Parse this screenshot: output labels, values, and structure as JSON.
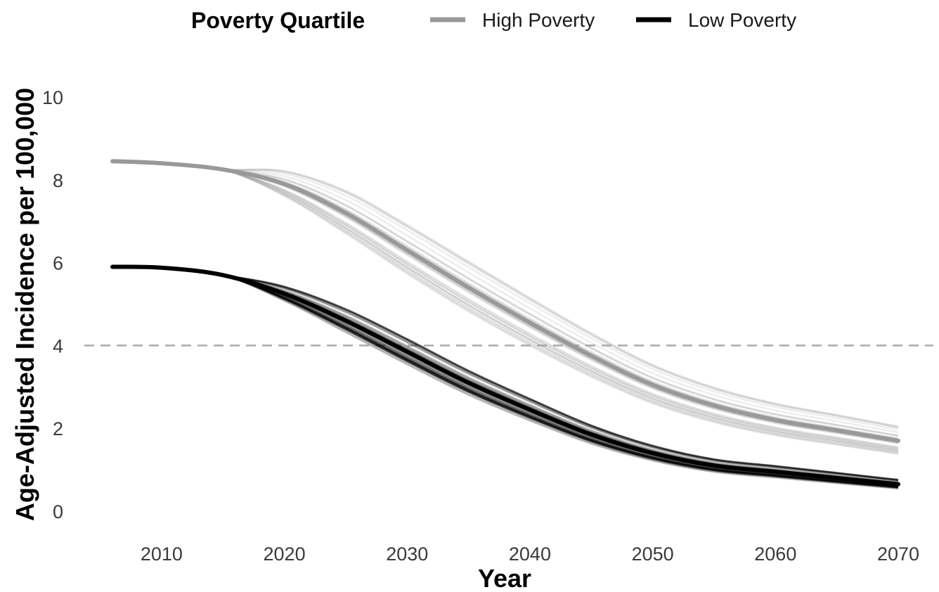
{
  "chart_data": {
    "type": "line",
    "xlabel": "Year",
    "ylabel": "Age-Adjusted Incidence per 100,000",
    "xlim": [
      2006,
      2070
    ],
    "ylim": [
      0,
      10
    ],
    "x_ticks": [
      2010,
      2020,
      2030,
      2040,
      2050,
      2060,
      2070
    ],
    "y_ticks": [
      0,
      2,
      4,
      6,
      8,
      10
    ],
    "grid": false,
    "legend": {
      "title": "Poverty Quartile",
      "position": "top",
      "entries": [
        {
          "label": "High Poverty",
          "color": "#999999"
        },
        {
          "label": "Low Poverty",
          "color": "#000000"
        }
      ]
    },
    "reference_line": {
      "y": 4,
      "style": "dashed",
      "color": "#aaaaaa"
    },
    "x": [
      2006,
      2010,
      2015,
      2020,
      2025,
      2030,
      2035,
      2040,
      2045,
      2050,
      2055,
      2060,
      2065,
      2070
    ],
    "series": [
      {
        "name": "High Poverty",
        "color": "#999999",
        "values": [
          8.45,
          8.4,
          8.25,
          7.9,
          7.2,
          6.3,
          5.4,
          4.55,
          3.75,
          3.05,
          2.55,
          2.2,
          1.95,
          1.7
        ]
      },
      {
        "name": "Low Poverty",
        "color": "#000000",
        "values": [
          5.9,
          5.88,
          5.7,
          5.25,
          4.6,
          3.85,
          3.1,
          2.45,
          1.85,
          1.4,
          1.1,
          0.95,
          0.8,
          0.65
        ]
      }
    ]
  }
}
